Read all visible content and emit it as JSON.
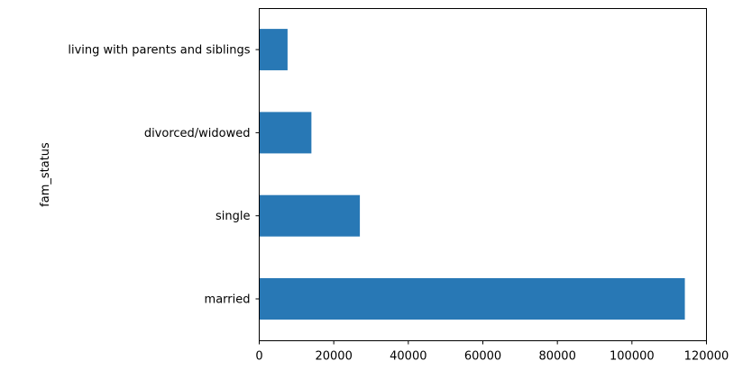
{
  "chart_data": {
    "type": "bar",
    "orientation": "horizontal",
    "categories": [
      "married",
      "single",
      "divorced/widowed",
      "living with parents and siblings"
    ],
    "values": [
      114200,
      27000,
      14000,
      7600
    ],
    "title": "",
    "xlabel": "",
    "ylabel": "fam_status",
    "xlim": [
      0,
      120000
    ],
    "xticks": [
      0,
      20000,
      40000,
      60000,
      80000,
      100000,
      120000
    ],
    "grid": false,
    "bar_color": "#2878b5"
  }
}
